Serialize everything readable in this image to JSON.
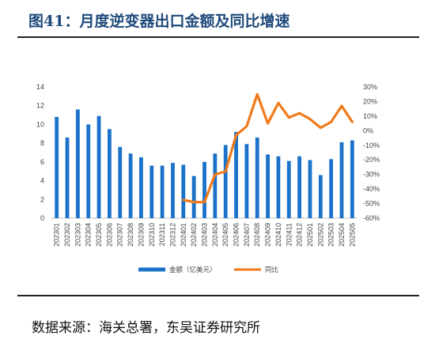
{
  "header": {
    "title": "图41：月度逆变器出口金额及同比增速"
  },
  "footer": {
    "source": "数据来源：海关总署，东吴证券研究所"
  },
  "colors": {
    "bar": "#1a72c9",
    "line": "#f07a1a",
    "title": "#1f4a7a"
  },
  "chart_data": {
    "type": "bar",
    "categories": [
      "202301",
      "202302",
      "202303",
      "202304",
      "202305",
      "202306",
      "202307",
      "202308",
      "202309",
      "202310",
      "202311",
      "202312",
      "202401",
      "202402",
      "202403",
      "202404",
      "202405",
      "202406",
      "202407",
      "202408",
      "202409",
      "202410",
      "202411",
      "202412",
      "202501",
      "202502",
      "202503",
      "202504",
      "202505"
    ],
    "series": [
      {
        "name": "金额（亿美元）",
        "type": "bar",
        "axis": "left",
        "values": [
          10.8,
          8.6,
          11.6,
          10.0,
          10.9,
          9.5,
          7.6,
          6.9,
          6.5,
          5.6,
          5.6,
          5.9,
          5.7,
          4.5,
          6.0,
          6.9,
          7.8,
          9.2,
          7.9,
          8.6,
          6.8,
          6.6,
          6.1,
          6.6,
          6.2,
          4.6,
          6.3,
          8.1,
          8.3
        ]
      },
      {
        "name": "同比",
        "type": "line",
        "axis": "right",
        "values": [
          null,
          null,
          null,
          null,
          null,
          null,
          null,
          null,
          null,
          null,
          null,
          null,
          -47.5,
          -49,
          -49,
          -30,
          -28,
          -3,
          3,
          25,
          5,
          19,
          9,
          12,
          8,
          2,
          6,
          17,
          6
        ]
      }
    ],
    "ylim": [
      0,
      14
    ],
    "yticks": [
      "0",
      "2",
      "4",
      "6",
      "8",
      "10",
      "12",
      "14"
    ],
    "y2lim": [
      -60,
      30
    ],
    "y2ticks": [
      "-60%",
      "-50%",
      "-40%",
      "-30%",
      "-20%",
      "-10%",
      "0%",
      "10%",
      "20%",
      "30%"
    ],
    "legend": "bottom"
  }
}
